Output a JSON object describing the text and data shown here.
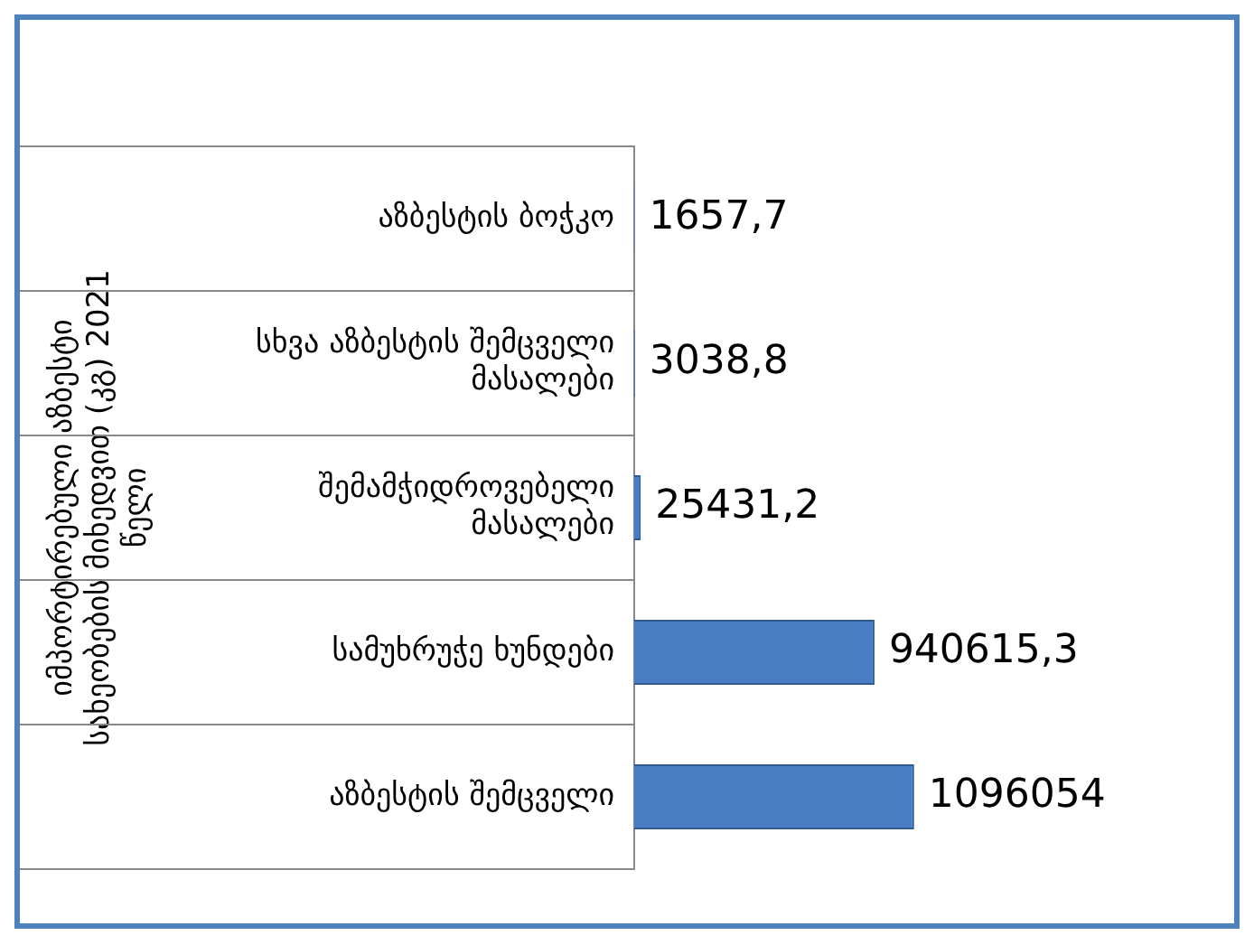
{
  "chart_data": {
    "type": "bar",
    "orientation": "horizontal",
    "ylabel": "იმპორტირებული აზბესტი სახეობების მიხედვით (კგ) 2021 წელი",
    "categories": [
      "აზბესტის ბოჭკო",
      "სხვა აზბესტის შემცველი მასალები",
      "შემამჭიდროვებელი მასალები",
      "სამუხრუჭე ხუნდები",
      "აზბესტის შემცველი"
    ],
    "values": [
      1657.7,
      3038.8,
      25431.2,
      940615.3,
      1096054
    ],
    "value_labels": [
      "1657,7",
      "3038,8",
      "25431,2",
      "940615,3",
      "1096054"
    ],
    "color": "#4a7dc1",
    "grid": "y",
    "legend": false
  }
}
